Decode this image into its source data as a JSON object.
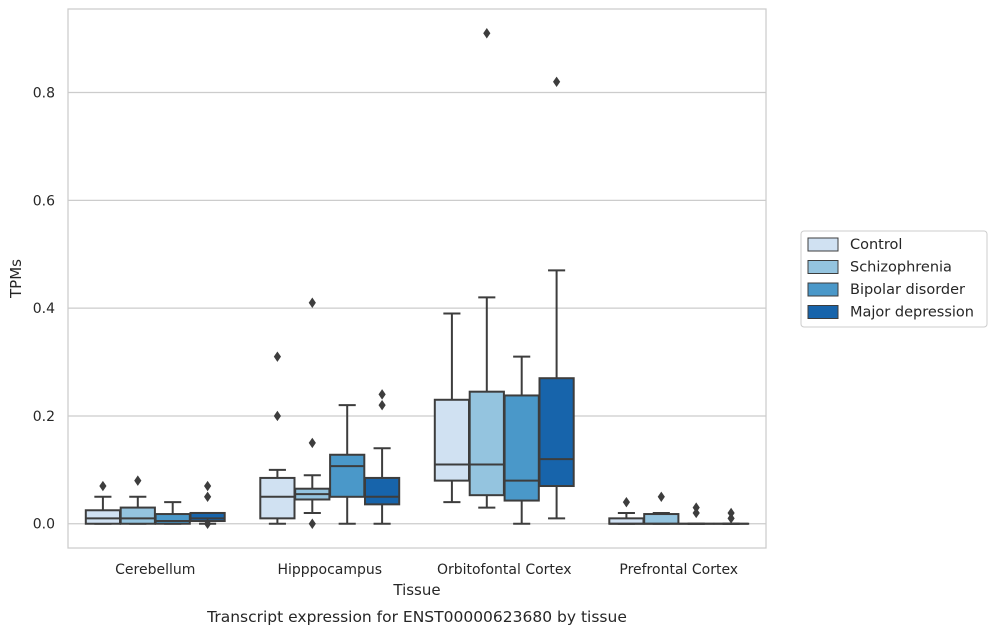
{
  "chart_data": {
    "type": "box",
    "title": "Transcript expression for ENST00000623680 by tissue",
    "xlabel": "Tissue",
    "ylabel": "TPMs",
    "ylim": [
      -0.045,
      0.955
    ],
    "yticks": [
      0.0,
      0.2,
      0.4,
      0.6,
      0.8
    ],
    "ytick_labels": [
      "0.0",
      "0.2",
      "0.4",
      "0.6",
      "0.8"
    ],
    "grid": "horizontal",
    "legend_position": "right",
    "categories": [
      "Cerebellum",
      "Hipppocampus",
      "Orbitofontal Cortex",
      "Prefrontal Cortex"
    ],
    "series": [
      {
        "name": "Control",
        "color": "#d0e1f2",
        "boxes": [
          {
            "low": 0.0,
            "q1": 0.0,
            "median": 0.01,
            "q3": 0.025,
            "high": 0.05,
            "outliers": [
              0.07
            ]
          },
          {
            "low": 0.0,
            "q1": 0.01,
            "median": 0.05,
            "q3": 0.085,
            "high": 0.1,
            "outliers": [
              0.2,
              0.31
            ]
          },
          {
            "low": 0.04,
            "q1": 0.08,
            "median": 0.11,
            "q3": 0.23,
            "high": 0.39,
            "outliers": []
          },
          {
            "low": 0.0,
            "q1": 0.0,
            "median": 0.0,
            "q3": 0.01,
            "high": 0.02,
            "outliers": [
              0.04
            ]
          }
        ]
      },
      {
        "name": "Schizophrenia",
        "color": "#94c4df",
        "boxes": [
          {
            "low": 0.0,
            "q1": 0.0,
            "median": 0.01,
            "q3": 0.03,
            "high": 0.05,
            "outliers": [
              0.08
            ]
          },
          {
            "low": 0.02,
            "q1": 0.045,
            "median": 0.055,
            "q3": 0.065,
            "high": 0.09,
            "outliers": [
              0.0,
              0.15,
              0.41
            ]
          },
          {
            "low": 0.03,
            "q1": 0.053,
            "median": 0.11,
            "q3": 0.245,
            "high": 0.42,
            "outliers": [
              0.91
            ]
          },
          {
            "low": 0.0,
            "q1": 0.0,
            "median": 0.0,
            "q3": 0.018,
            "high": 0.02,
            "outliers": [
              0.05
            ]
          }
        ]
      },
      {
        "name": "Bipolar disorder",
        "color": "#4a98c9",
        "boxes": [
          {
            "low": 0.0,
            "q1": 0.0,
            "median": 0.005,
            "q3": 0.018,
            "high": 0.04,
            "outliers": []
          },
          {
            "low": 0.0,
            "q1": 0.05,
            "median": 0.107,
            "q3": 0.128,
            "high": 0.22,
            "outliers": []
          },
          {
            "low": 0.0,
            "q1": 0.043,
            "median": 0.08,
            "q3": 0.238,
            "high": 0.31,
            "outliers": []
          },
          {
            "low": 0.0,
            "q1": 0.0,
            "median": 0.0,
            "q3": 0.0,
            "high": 0.0,
            "outliers": [
              0.02,
              0.03
            ]
          }
        ]
      },
      {
        "name": "Major depression",
        "color": "#1764ab",
        "boxes": [
          {
            "low": 0.0,
            "q1": 0.005,
            "median": 0.01,
            "q3": 0.02,
            "high": 0.02,
            "outliers": [
              0.0,
              0.05,
              0.07
            ]
          },
          {
            "low": 0.0,
            "q1": 0.036,
            "median": 0.05,
            "q3": 0.085,
            "high": 0.14,
            "outliers": [
              0.22,
              0.24
            ]
          },
          {
            "low": 0.01,
            "q1": 0.07,
            "median": 0.12,
            "q3": 0.27,
            "high": 0.47,
            "outliers": [
              0.82
            ]
          },
          {
            "low": 0.0,
            "q1": 0.0,
            "median": 0.0,
            "q3": 0.0,
            "high": 0.0,
            "outliers": [
              0.01,
              0.02
            ]
          }
        ]
      }
    ]
  }
}
